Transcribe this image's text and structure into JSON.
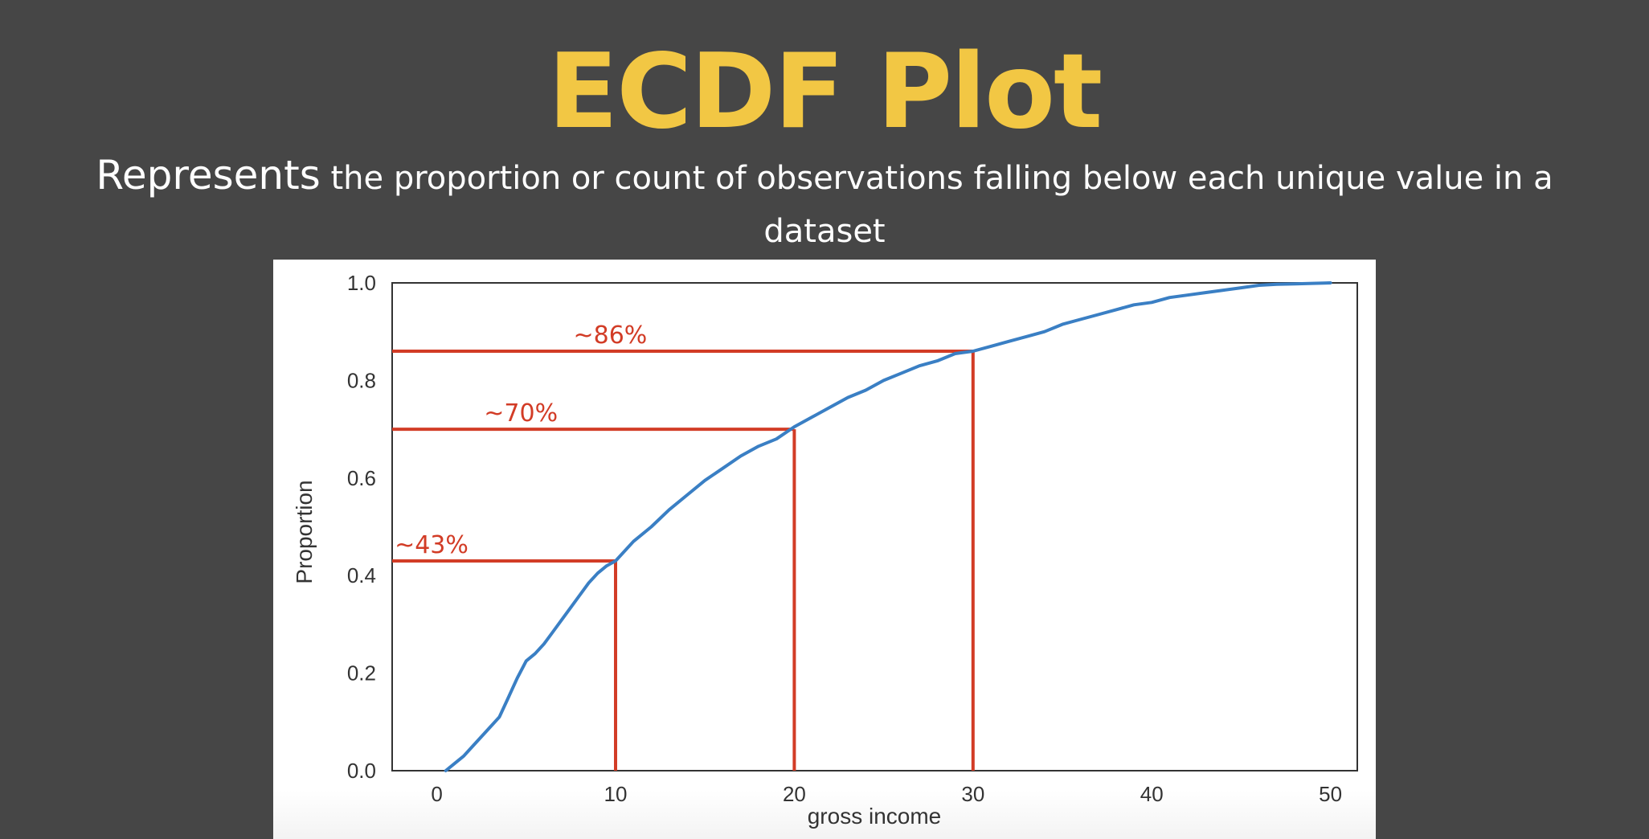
{
  "slide": {
    "title": "ECDF Plot",
    "subtitle_lead": "Represents",
    "subtitle_rest": "the proportion or count of observations falling below each unique value in a dataset"
  },
  "chart_data": {
    "type": "line",
    "title": "",
    "xlabel": "gross income",
    "ylabel": "Proportion",
    "xlim": [
      -2.5,
      51.5
    ],
    "ylim": [
      0,
      1
    ],
    "x_ticks": [
      0,
      10,
      20,
      30,
      40,
      50
    ],
    "x_tick_labels": [
      "0",
      "10",
      "20",
      "30",
      "40",
      "50"
    ],
    "y_ticks": [
      0,
      0.2,
      0.4,
      0.6,
      0.8,
      1.0
    ],
    "y_tick_labels": [
      "0.0",
      "0.2",
      "0.4",
      "0.6",
      "0.8",
      "1.0"
    ],
    "grid": false,
    "series": [
      {
        "color": "#3a7fc4",
        "x": [
          0.5,
          1,
          1.5,
          2,
          2.5,
          3,
          3.5,
          4,
          4.5,
          5,
          5.5,
          6,
          6.5,
          7,
          7.5,
          8,
          8.5,
          9,
          9.5,
          10,
          11,
          12,
          13,
          14,
          15,
          16,
          17,
          18,
          19,
          20,
          21,
          22,
          23,
          24,
          25,
          26,
          27,
          28,
          29,
          30,
          31,
          32,
          33,
          34,
          35,
          36,
          37,
          38,
          39,
          40,
          41,
          42,
          43,
          44,
          45,
          46,
          47,
          48,
          49,
          50
        ],
        "y": [
          0.0,
          0.015,
          0.03,
          0.05,
          0.07,
          0.09,
          0.11,
          0.15,
          0.19,
          0.225,
          0.24,
          0.26,
          0.285,
          0.31,
          0.335,
          0.36,
          0.385,
          0.405,
          0.42,
          0.43,
          0.47,
          0.5,
          0.535,
          0.565,
          0.595,
          0.62,
          0.645,
          0.665,
          0.68,
          0.705,
          0.725,
          0.745,
          0.765,
          0.78,
          0.8,
          0.815,
          0.83,
          0.84,
          0.855,
          0.86,
          0.87,
          0.88,
          0.89,
          0.9,
          0.915,
          0.925,
          0.935,
          0.945,
          0.955,
          0.96,
          0.97,
          0.975,
          0.98,
          0.985,
          0.99,
          0.995,
          0.997,
          0.998,
          0.999,
          1.0
        ]
      }
    ],
    "annotations": [
      {
        "x": 10,
        "y": 0.43,
        "label": "~43%",
        "color": "#d23c26"
      },
      {
        "x": 20,
        "y": 0.7,
        "label": "~70%",
        "color": "#d23c26"
      },
      {
        "x": 30,
        "y": 0.86,
        "label": "~86%",
        "color": "#d23c26"
      }
    ]
  }
}
